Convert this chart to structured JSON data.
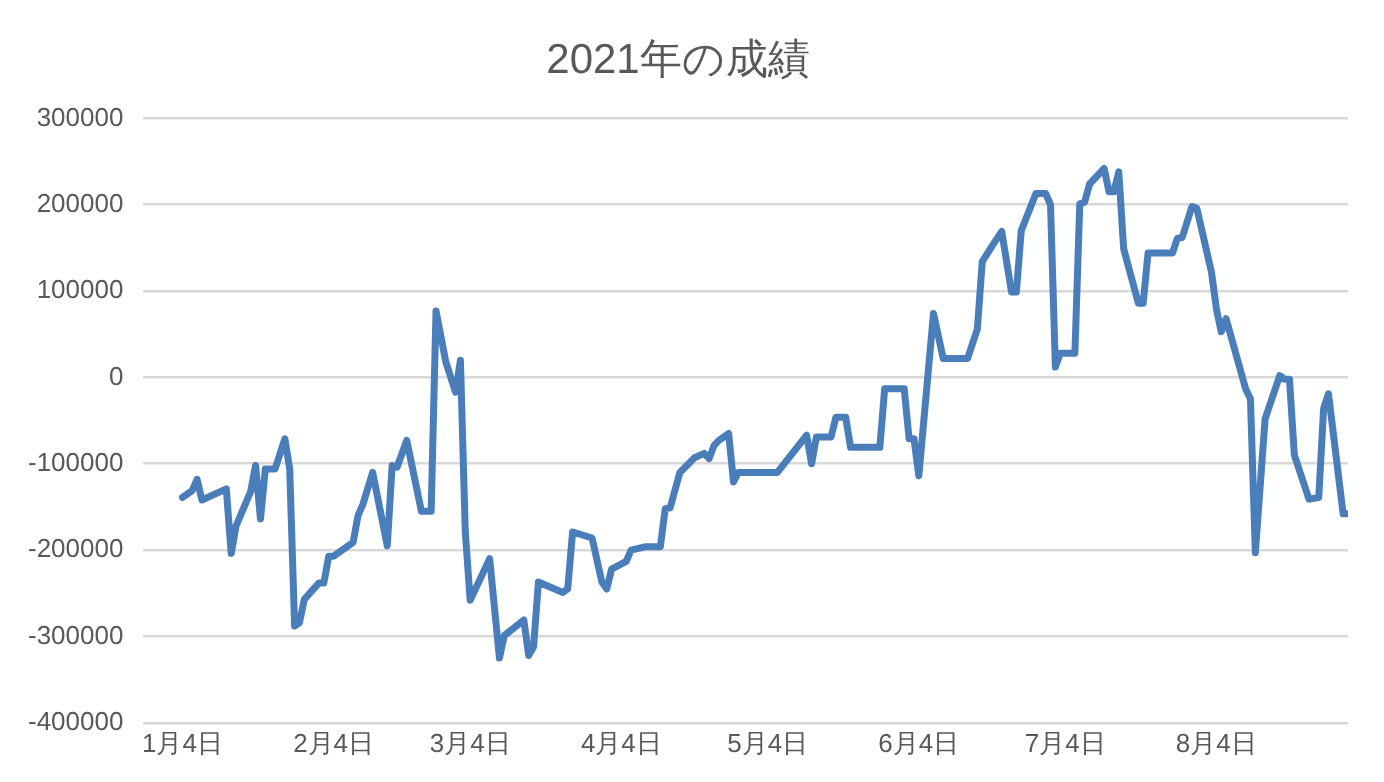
{
  "chart_data": {
    "type": "line",
    "title": "2021年の成績",
    "x": [
      "2021-01-04",
      "2021-01-06",
      "2021-01-07",
      "2021-01-08",
      "2021-01-13",
      "2021-01-14",
      "2021-01-15",
      "2021-01-18",
      "2021-01-19",
      "2021-01-20",
      "2021-01-21",
      "2021-01-23",
      "2021-01-25",
      "2021-01-26",
      "2021-01-27",
      "2021-01-28",
      "2021-01-29",
      "2021-02-01",
      "2021-02-02",
      "2021-02-03",
      "2021-02-04",
      "2021-02-08",
      "2021-02-09",
      "2021-02-10",
      "2021-02-12",
      "2021-02-15",
      "2021-02-16",
      "2021-02-17",
      "2021-02-19",
      "2021-02-22",
      "2021-02-24",
      "2021-02-25",
      "2021-02-27",
      "2021-03-01",
      "2021-03-02",
      "2021-03-03",
      "2021-03-04",
      "2021-03-08",
      "2021-03-10",
      "2021-03-11",
      "2021-03-15",
      "2021-03-16",
      "2021-03-17",
      "2021-03-18",
      "2021-03-23",
      "2021-03-24",
      "2021-03-25",
      "2021-03-29",
      "2021-03-31",
      "2021-04-01",
      "2021-04-02",
      "2021-04-05",
      "2021-04-06",
      "2021-04-09",
      "2021-04-12",
      "2021-04-13",
      "2021-04-14",
      "2021-04-16",
      "2021-04-19",
      "2021-04-21",
      "2021-04-22",
      "2021-04-23",
      "2021-04-24",
      "2021-04-26",
      "2021-04-27",
      "2021-04-28",
      "2021-05-06",
      "2021-05-12",
      "2021-05-13",
      "2021-05-14",
      "2021-05-17",
      "2021-05-18",
      "2021-05-20",
      "2021-05-21",
      "2021-05-27",
      "2021-05-28",
      "2021-06-01",
      "2021-06-02",
      "2021-06-03",
      "2021-06-04",
      "2021-06-07",
      "2021-06-09",
      "2021-06-14",
      "2021-06-16",
      "2021-06-17",
      "2021-06-19",
      "2021-06-21",
      "2021-06-23",
      "2021-06-24",
      "2021-06-25",
      "2021-06-28",
      "2021-06-30",
      "2021-07-01",
      "2021-07-02",
      "2021-07-03",
      "2021-07-06",
      "2021-07-07",
      "2021-07-08",
      "2021-07-09",
      "2021-07-12",
      "2021-07-13",
      "2021-07-14",
      "2021-07-15",
      "2021-07-16",
      "2021-07-19",
      "2021-07-20",
      "2021-07-21",
      "2021-07-26",
      "2021-07-27",
      "2021-07-28",
      "2021-07-30",
      "2021-07-31",
      "2021-08-03",
      "2021-08-04",
      "2021-08-05",
      "2021-08-06",
      "2021-08-10",
      "2021-08-11",
      "2021-08-12",
      "2021-08-14",
      "2021-08-17",
      "2021-08-18",
      "2021-08-19",
      "2021-08-20",
      "2021-08-23",
      "2021-08-25",
      "2021-08-26",
      "2021-08-27",
      "2021-08-30",
      "2021-08-31"
    ],
    "series": [
      {
        "color": "#4a7ebb",
        "values": [
          -139000,
          -131000,
          -118000,
          -142000,
          -129000,
          -204000,
          -172000,
          -132000,
          -102000,
          -164000,
          -106000,
          -106000,
          -71000,
          -106000,
          -288000,
          -284000,
          -257000,
          -238000,
          -238000,
          -207000,
          -207000,
          -191000,
          -160000,
          -147000,
          -110000,
          -195000,
          -102000,
          -104000,
          -73000,
          -155000,
          -155000,
          77000,
          18000,
          -17000,
          20000,
          -179000,
          -258000,
          -210000,
          -325000,
          -299000,
          -281000,
          -322000,
          -312000,
          -237000,
          -249000,
          -245000,
          -179000,
          -186000,
          -237000,
          -245000,
          -222000,
          -213000,
          -200000,
          -196000,
          -196000,
          -152000,
          -151000,
          -110000,
          -93000,
          -88000,
          -94000,
          -79000,
          -73000,
          -65000,
          -121000,
          -110000,
          -110000,
          -67000,
          -100000,
          -69000,
          -69000,
          -46000,
          -46000,
          -81000,
          -81000,
          -13000,
          -13000,
          -71000,
          -71000,
          -114000,
          74000,
          22000,
          22000,
          56000,
          134000,
          152000,
          169000,
          99000,
          99000,
          170000,
          213000,
          213000,
          200000,
          12000,
          28000,
          28000,
          201000,
          203000,
          224000,
          242000,
          215000,
          215000,
          238000,
          149000,
          86000,
          86000,
          144000,
          144000,
          161000,
          162000,
          198000,
          196000,
          122000,
          80000,
          53000,
          68000,
          -13000,
          -25000,
          -203000,
          -48000,
          2000,
          -2000,
          -2000,
          -90000,
          -141000,
          -139000,
          -36000,
          -19000,
          -158000,
          -158000
        ]
      }
    ],
    "xlim": [
      "2020-12-27",
      "2021-08-31"
    ],
    "xticks": [
      {
        "value": "2021-01-04",
        "label": "1月4日"
      },
      {
        "value": "2021-02-04",
        "label": "2月4日"
      },
      {
        "value": "2021-03-04",
        "label": "3月4日"
      },
      {
        "value": "2021-04-04",
        "label": "4月4日"
      },
      {
        "value": "2021-05-04",
        "label": "5月4日"
      },
      {
        "value": "2021-06-04",
        "label": "6月4日"
      },
      {
        "value": "2021-07-04",
        "label": "7月4日"
      },
      {
        "value": "2021-08-04",
        "label": "8月4日"
      }
    ],
    "ylim": [
      -400000,
      300000
    ],
    "yticks": [
      -400000,
      -300000,
      -200000,
      -100000,
      0,
      100000,
      200000,
      300000
    ],
    "grid": "y",
    "legend": false,
    "marker": "none",
    "line_style": "solid"
  }
}
